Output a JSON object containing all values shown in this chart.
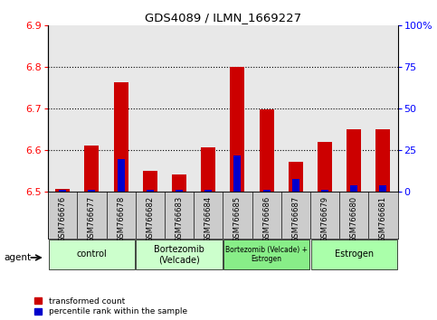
{
  "title": "GDS4089 / ILMN_1669227",
  "samples": [
    "GSM766676",
    "GSM766677",
    "GSM766678",
    "GSM766682",
    "GSM766683",
    "GSM766684",
    "GSM766685",
    "GSM766686",
    "GSM766687",
    "GSM766679",
    "GSM766680",
    "GSM766681"
  ],
  "red_values": [
    6.508,
    6.612,
    6.763,
    6.55,
    6.542,
    6.607,
    6.8,
    6.698,
    6.572,
    6.62,
    6.65,
    6.651
  ],
  "blue_values": [
    1.5,
    1.5,
    20.0,
    1.5,
    1.5,
    1.5,
    22.0,
    1.5,
    8.0,
    1.5,
    4.0,
    4.0
  ],
  "baseline": 6.5,
  "ylim_left": [
    6.5,
    6.9
  ],
  "ylim_right": [
    0,
    100
  ],
  "yticks_left": [
    6.5,
    6.6,
    6.7,
    6.8,
    6.9
  ],
  "yticks_right": [
    0,
    25,
    50,
    75,
    100
  ],
  "ytick_labels_right": [
    "0",
    "25",
    "50",
    "75",
    "100%"
  ],
  "group_data": [
    {
      "label": "control",
      "start": 0,
      "end": 3,
      "color": "#ccffcc"
    },
    {
      "label": "Bortezomib\n(Velcade)",
      "start": 3,
      "end": 6,
      "color": "#ccffcc"
    },
    {
      "label": "Bortezomib (Velcade) +\nEstrogen",
      "start": 6,
      "end": 9,
      "color": "#88ee88"
    },
    {
      "label": "Estrogen",
      "start": 9,
      "end": 12,
      "color": "#aaffaa"
    }
  ],
  "bar_color_red": "#cc0000",
  "bar_color_blue": "#0000cc",
  "bar_width": 0.5,
  "background_color": "#ffffff",
  "plot_bg_color": "#e8e8e8",
  "legend_red": "transformed count",
  "legend_blue": "percentile rank within the sample",
  "agent_label": "agent",
  "grid_lines": [
    6.6,
    6.7,
    6.8
  ]
}
